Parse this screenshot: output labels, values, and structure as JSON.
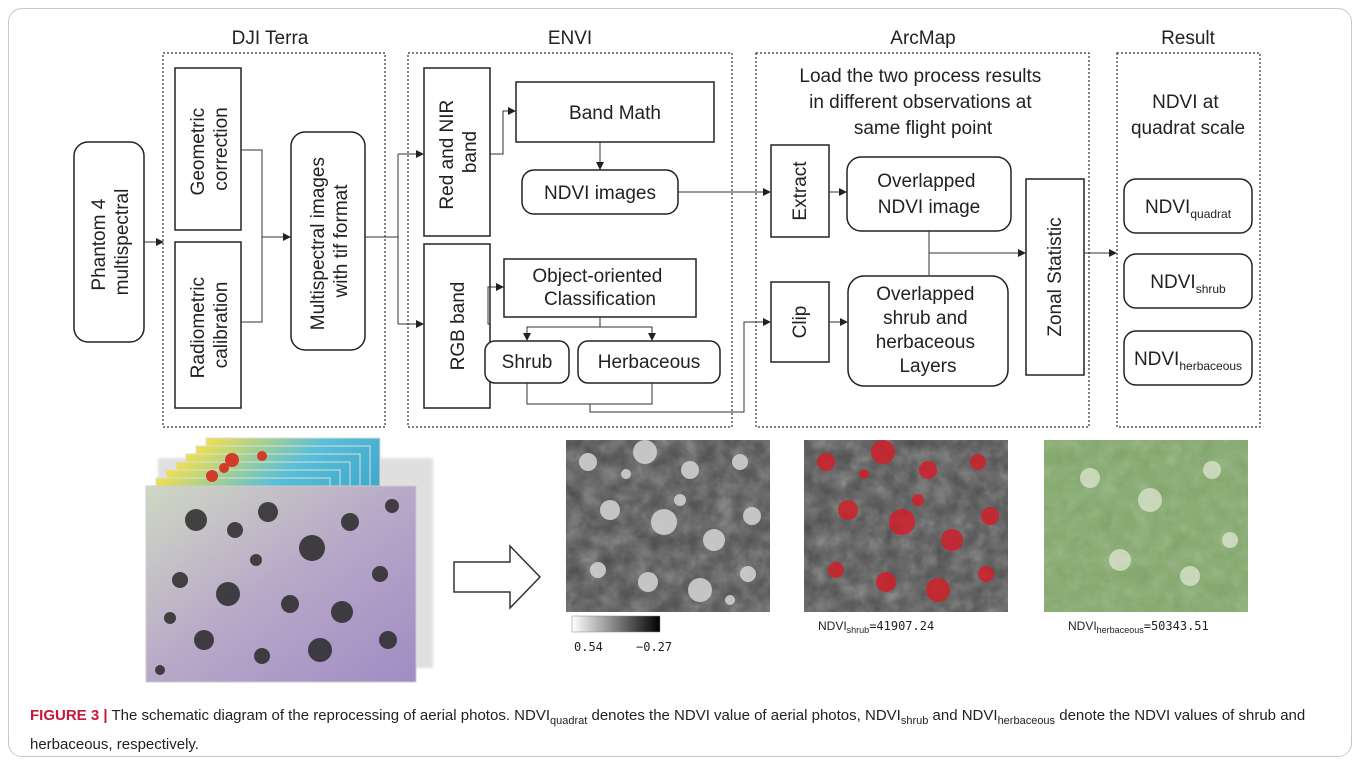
{
  "sections": {
    "dji_terra": "DJI Terra",
    "envi": "ENVI",
    "arcmap": "ArcMap",
    "result": "Result"
  },
  "boxes": {
    "phantom": [
      "Phantom 4",
      "multispectral"
    ],
    "geometric": [
      "Geometric",
      "correction"
    ],
    "radiometric": [
      "Radiometric",
      "calibration"
    ],
    "multispectral_images": [
      "Multispectral images",
      "with tif format"
    ],
    "red_nir": [
      "Red and NIR",
      "band"
    ],
    "rgb_band": "RGB band",
    "band_math": "Band Math",
    "ndvi_images": "NDVI images",
    "object_oriented": [
      "Object-oriented",
      "Classification"
    ],
    "shrub": "Shrub",
    "herbaceous": "Herbaceous",
    "load_text": [
      "Load the two process results",
      "in different observations at",
      "same flight point"
    ],
    "extract": "Extract",
    "clip": "Clip",
    "overlapped_ndvi": [
      "Overlapped",
      "NDVI image"
    ],
    "overlapped_layers": [
      "Overlapped",
      "shrub and",
      "herbaceous",
      "Layers"
    ],
    "zonal": "Zonal Statistic",
    "ndvi_scale": [
      "NDVI at",
      "quadrat scale"
    ]
  },
  "results": [
    {
      "main": "NDVI",
      "sub": "quadrat"
    },
    {
      "main": "NDVI",
      "sub": "shrub"
    },
    {
      "main": "NDVI",
      "sub": "herbaceous"
    }
  ],
  "images": {
    "legend_min": "0.54",
    "legend_max": "−0.27",
    "shrub_value": {
      "main": "NDVI",
      "sub": "shrub",
      "value": "=41907.24"
    },
    "herb_value": {
      "main": "NDVI",
      "sub": "herbaceous",
      "value": "=50343.51"
    }
  },
  "caption": {
    "label": "FIGURE 3 |",
    "p1": " The schematic diagram of the reprocessing of aerial photos. NDVI",
    "s1": "quadrat",
    "p2": " denotes the NDVI value of aerial photos, NDVI",
    "s2": "shrub",
    "p3": " and NDVI",
    "s3": "herbaceous",
    "p4": " denote the NDVI values of shrub and herbaceous, respectively."
  },
  "colors": {
    "caption_label": "#c8163c",
    "shrub_overlay": "#d0202a",
    "herb_overlay": "#8ec26a"
  }
}
